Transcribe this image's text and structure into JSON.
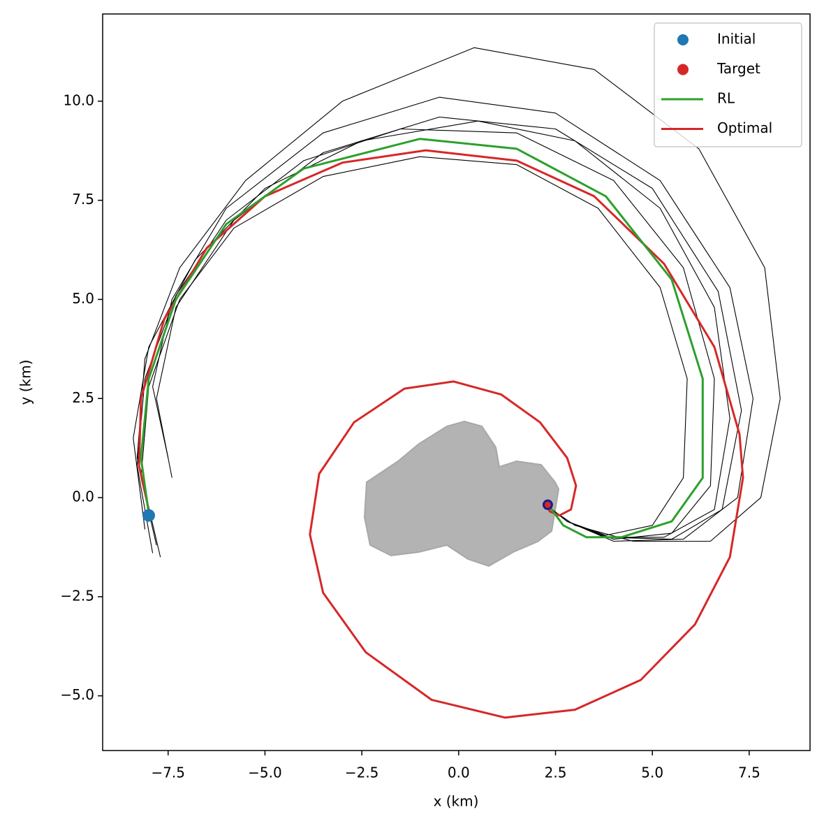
{
  "chart_data": {
    "type": "line",
    "xlabel": "x (km)",
    "ylabel": "y (km)",
    "xlim": [
      -9.19,
      9.07
    ],
    "ylim": [
      -6.38,
      12.2
    ],
    "xticks": [
      {
        "value": -7.5,
        "label": "−7.5"
      },
      {
        "value": -5,
        "label": "−5.0"
      },
      {
        "value": -2.5,
        "label": "−2.5"
      },
      {
        "value": 0,
        "label": "0.0"
      },
      2.5,
      {
        "value": 5,
        "label": "5.0"
      },
      7.5
    ],
    "yticks": [
      {
        "value": -5,
        "label": "−5.0"
      },
      {
        "value": -2.5,
        "label": "−2.5"
      },
      {
        "value": 0,
        "label": "0.0"
      },
      2.5,
      {
        "value": 5,
        "label": "5.0"
      },
      7.5,
      {
        "value": 10,
        "label": "10.0"
      }
    ],
    "legend": "upper right",
    "scatter": [
      {
        "name": "Initial",
        "color": "#1f77b4",
        "x": [
          -8.0
        ],
        "y": [
          -0.45
        ]
      },
      {
        "name": "Target",
        "color": "#d62728",
        "x": [
          2.3
        ],
        "y": [
          -0.18
        ]
      }
    ],
    "series": [
      {
        "color": "#000000",
        "x": [
          -7.7,
          -8.3,
          -8.1,
          -7.2,
          -5.5,
          -3,
          0.4,
          3.5,
          6.2,
          7.9,
          8.3,
          7.8,
          6.5,
          4.5,
          3,
          2.4
        ],
        "y": [
          -1.5,
          1,
          3.5,
          5.8,
          8,
          10,
          11.35,
          10.8,
          8.8,
          5.8,
          2.5,
          0,
          -1.1,
          -1.1,
          -0.7,
          -0.3
        ]
      },
      {
        "color": "#000000",
        "x": [
          -7.5,
          -7.9,
          -7.4,
          -6,
          -3.5,
          -0.5,
          2.5,
          5.2,
          7,
          7.6,
          7.2,
          5.8,
          4,
          2.8,
          2.35
        ],
        "y": [
          1,
          2.8,
          5,
          7.3,
          9.2,
          10.1,
          9.7,
          8,
          5.3,
          2.5,
          0,
          -1.05,
          -1.1,
          -0.6,
          -0.25
        ]
      },
      {
        "color": "#000000",
        "x": [
          -7.8,
          -8.2,
          -8,
          -7.2,
          -5.8,
          -3.5,
          -1,
          1.5,
          3.6,
          5.2,
          5.9,
          5.8,
          5,
          3.8,
          2.8,
          2.35
        ],
        "y": [
          -1.2,
          0.5,
          2.8,
          5,
          6.8,
          8.1,
          8.6,
          8.4,
          7.3,
          5.3,
          3,
          0.5,
          -0.7,
          -0.95,
          -0.6,
          -0.25
        ]
      },
      {
        "color": "#000000",
        "x": [
          -8.1,
          -8.4,
          -8,
          -6.8,
          -5,
          -2.5,
          0.5,
          3,
          5.2,
          6.6,
          7,
          6.6,
          5.3,
          3.8,
          2.8,
          2.35
        ],
        "y": [
          -0.8,
          1.5,
          3.8,
          6,
          7.8,
          9,
          9.5,
          9,
          7.3,
          4.8,
          2,
          -0.3,
          -1,
          -1,
          -0.6,
          -0.25
        ]
      },
      {
        "color": "#000000",
        "x": [
          -7.4,
          -7.8,
          -7.3,
          -5.8,
          -3.5,
          -0.5,
          2.5,
          5,
          6.7,
          7.3,
          6.8,
          5.5,
          3.8,
          2.8,
          2.35
        ],
        "y": [
          0.5,
          2.5,
          4.8,
          7,
          8.7,
          9.6,
          9.3,
          7.8,
          5.2,
          2.2,
          -0.3,
          -1.05,
          -1,
          -0.6,
          -0.25
        ]
      },
      {
        "color": "#000000",
        "x": [
          -7.9,
          -8.3,
          -8.1,
          -7.3,
          -6,
          -4,
          -1.5,
          1.5,
          4,
          5.8,
          6.6,
          6.5,
          5.5,
          4,
          2.8,
          2.35
        ],
        "y": [
          -1.4,
          0.8,
          3,
          5.1,
          7,
          8.5,
          9.3,
          9.2,
          8,
          5.8,
          3,
          0.3,
          -0.9,
          -1.05,
          -0.6,
          -0.25
        ]
      },
      {
        "name": "RL",
        "color": "#2ca02c",
        "x": [
          -8.0,
          -8.2,
          -8,
          -7.3,
          -6,
          -4,
          -1,
          1.5,
          3.8,
          5.5,
          6.3,
          6.3,
          5.5,
          4.2,
          3.3,
          2.7,
          2.4,
          2.3
        ],
        "y": [
          -0.4,
          1,
          3,
          5,
          6.9,
          8.3,
          9.05,
          8.8,
          7.6,
          5.5,
          3,
          0.5,
          -0.6,
          -1.0,
          -1.0,
          -0.7,
          -0.3,
          -0.2
        ]
      },
      {
        "name": "Optimal",
        "color": "#d62728",
        "x": [
          -8.0,
          -8.25,
          -8.2,
          -7.6,
          -6.5,
          -5,
          -3,
          -0.85,
          1.5,
          3.5,
          5.3,
          6.6,
          7.25,
          7.34,
          7.0,
          6.1,
          4.7,
          3,
          1.2,
          -0.7,
          -2.4,
          -3.5,
          -3.84,
          -3.6,
          -2.7,
          -1.4,
          -0.13,
          1.1,
          2.1,
          2.8,
          3.03,
          2.9,
          2.6,
          2.35,
          2.3
        ],
        "y": [
          -0.3,
          0.8,
          2.5,
          4.5,
          6.3,
          7.6,
          8.45,
          8.76,
          8.5,
          7.6,
          5.9,
          3.8,
          1.6,
          0.5,
          -1.5,
          -3.2,
          -4.6,
          -5.35,
          -5.55,
          -5.1,
          -3.9,
          -2.4,
          -0.93,
          0.6,
          1.9,
          2.75,
          2.93,
          2.6,
          1.9,
          1.0,
          0.3,
          -0.3,
          -0.45,
          -0.35,
          -0.2
        ]
      }
    ]
  }
}
